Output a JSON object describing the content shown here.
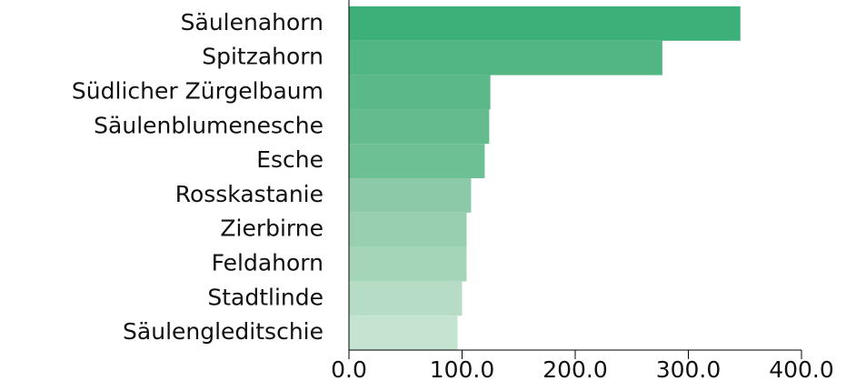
{
  "chart_data": {
    "type": "barh",
    "categories": [
      "Säulenahorn",
      "Spitzahorn",
      "Südlicher Zürgelbaum",
      "Säulenblumenesche",
      "Esche",
      "Rosskastanie",
      "Zierbirne",
      "Feldahorn",
      "Stadtlinde",
      "Säulengleditschie"
    ],
    "values": [
      346,
      277,
      125,
      124,
      120,
      108,
      104,
      104,
      100,
      96
    ],
    "colors": [
      "#3daf78",
      "#52b584",
      "#5bb889",
      "#63bb8e",
      "#6dbf94",
      "#8cc9a8",
      "#98cfb0",
      "#a5d5b9",
      "#b6dcc6",
      "#c4e3d0"
    ],
    "xlim": [
      0,
      400
    ],
    "xticks": [
      {
        "value": 0,
        "label": "0.0"
      },
      {
        "value": 100,
        "label": "100.0"
      },
      {
        "value": 200,
        "label": "200.0"
      },
      {
        "value": 300,
        "label": "300.0"
      },
      {
        "value": 400,
        "label": "400.0"
      }
    ]
  }
}
